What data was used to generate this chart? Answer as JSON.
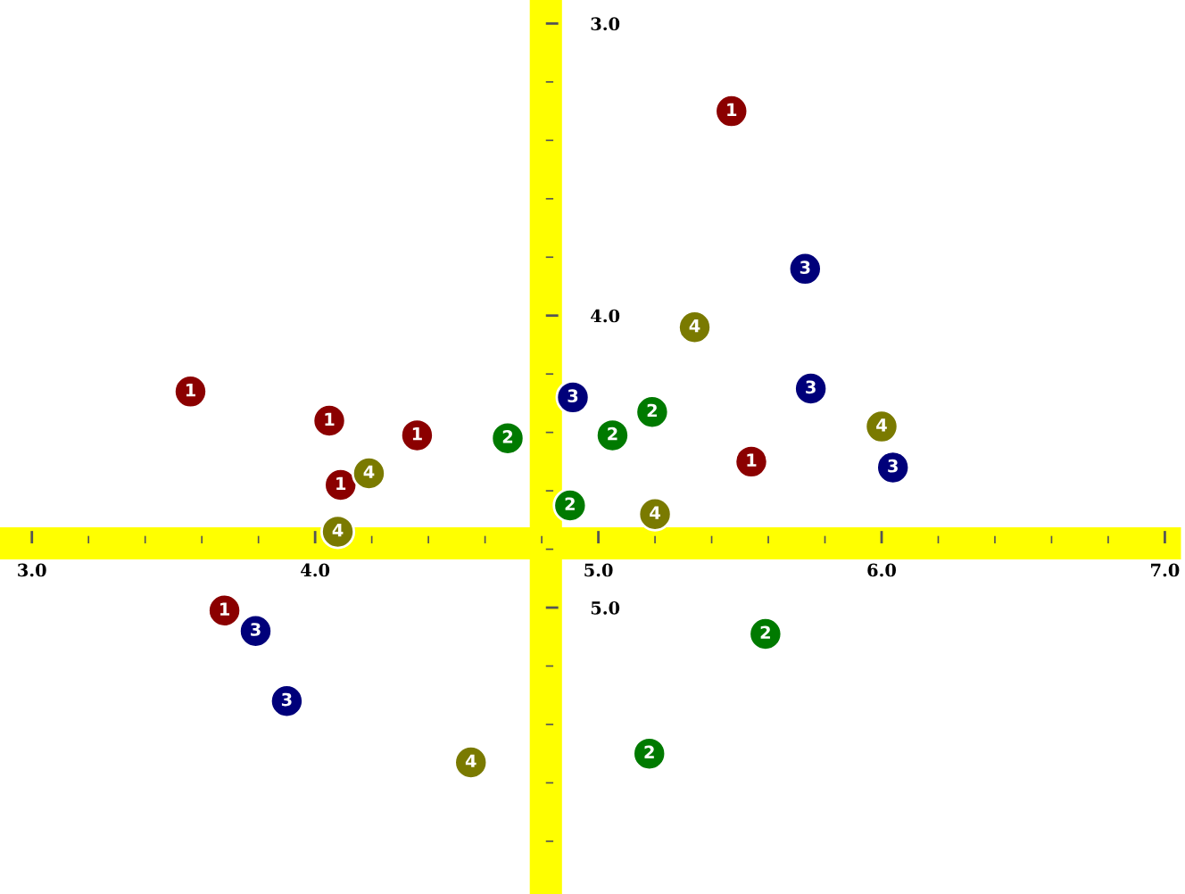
{
  "chart_data": {
    "type": "scatter",
    "xlim": [
      2.9,
      7.0
    ],
    "ylim": [
      5.95,
      2.95
    ],
    "marker": "circle",
    "xticks": [
      {
        "value": 3.0,
        "label": "3.0"
      },
      {
        "value": 4.0,
        "label": "4.0"
      },
      {
        "value": 5.0,
        "label": "5.0"
      },
      {
        "value": 6.0,
        "label": "6.0"
      },
      {
        "value": 7.0,
        "label": "7.0"
      }
    ],
    "yticks": [
      {
        "value": 3.0,
        "label": "3.0"
      },
      {
        "value": 4.0,
        "label": "4.0"
      },
      {
        "value": 5.0,
        "label": "5.0"
      }
    ],
    "series": [
      {
        "name": "1",
        "color": "#8b0000",
        "x": [
          5.47,
          3.56,
          4.05,
          4.36,
          4.09,
          5.54,
          3.68
        ],
        "values": [
          3.3,
          4.26,
          4.36,
          4.41,
          4.58,
          4.5,
          5.01
        ]
      },
      {
        "name": "2",
        "color": "#007a00",
        "x": [
          4.68,
          5.05,
          5.19,
          4.9,
          5.59,
          5.18
        ],
        "values": [
          4.42,
          4.41,
          4.33,
          4.65,
          5.09,
          5.5
        ]
      },
      {
        "name": "3",
        "color": "#00007a",
        "x": [
          5.73,
          4.91,
          5.75,
          6.04,
          3.79,
          3.9
        ],
        "values": [
          3.84,
          4.28,
          4.25,
          4.52,
          5.08,
          5.32
        ]
      },
      {
        "name": "4",
        "color": "#7a7a00",
        "x": [
          5.34,
          6.0,
          4.19,
          4.08,
          5.2,
          4.55
        ],
        "values": [
          4.04,
          4.38,
          4.54,
          4.74,
          4.68,
          5.53
        ]
      }
    ]
  }
}
